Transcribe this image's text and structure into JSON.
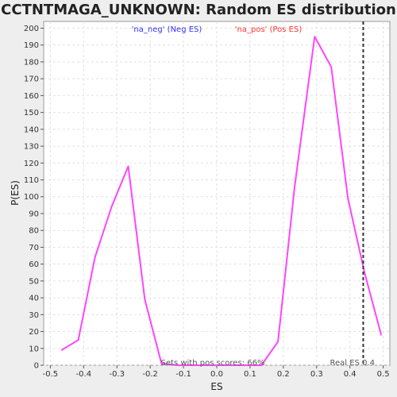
{
  "chart_data": {
    "type": "line",
    "title": "CCTNTMAGA_UNKNOWN: Random ES distribution",
    "xlabel": "ES",
    "ylabel": "P(ES)",
    "xlim": [
      -0.52,
      0.52
    ],
    "ylim": [
      0,
      204
    ],
    "xticks": [
      "-0.5",
      "-0.4",
      "-0.3",
      "-0.2",
      "-0.1",
      "0.0",
      "0.1",
      "0.2",
      "0.3",
      "0.4",
      "0.5"
    ],
    "yticks": [
      "0",
      "10",
      "20",
      "30",
      "40",
      "50",
      "60",
      "70",
      "80",
      "90",
      "100",
      "110",
      "120",
      "130",
      "140",
      "150",
      "160",
      "170",
      "180",
      "190",
      "200"
    ],
    "grid": true,
    "series": [
      {
        "color": "#ff44ff",
        "x": [
          -0.466,
          -0.416,
          -0.366,
          -0.316,
          -0.266,
          -0.216,
          -0.166,
          -0.116,
          -0.066,
          -0.016,
          0.034,
          0.084,
          0.134,
          0.184,
          0.234,
          0.294,
          0.344,
          0.394,
          0.444,
          0.494
        ],
        "y": [
          9,
          15,
          64,
          94,
          118,
          39,
          1,
          0,
          0,
          0,
          0,
          0,
          0,
          14,
          106,
          195,
          177,
          99,
          55,
          18
        ]
      }
    ],
    "legend": {
      "neg_label": "'na_neg' (Neg ES)",
      "pos_label": "'na_pos' (Pos ES)",
      "neg_color": "#3333ff",
      "pos_color": "#ff3333"
    },
    "annotations": {
      "pos_scores": "Sets with pos scores: 66%",
      "real_es": "Real ES 0.4",
      "real_es_value": 0.44
    }
  }
}
